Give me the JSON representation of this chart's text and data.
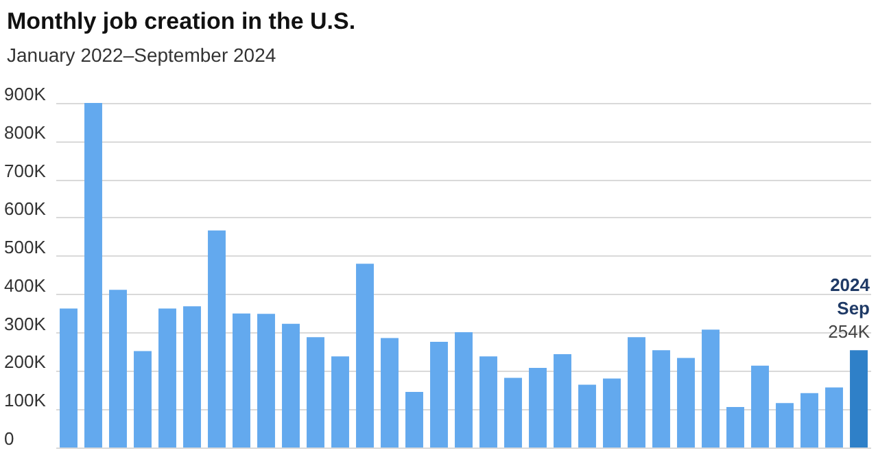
{
  "chart_data": {
    "type": "bar",
    "title": "Monthly job creation in the U.S.",
    "subtitle": "January 2022–September 2024",
    "categories": [
      null,
      null,
      null,
      null,
      null,
      null,
      null,
      null,
      null,
      null,
      null,
      null,
      null,
      null,
      null,
      null,
      null,
      null,
      null,
      null,
      null,
      null,
      null,
      null,
      null,
      null,
      null,
      null,
      null,
      null,
      null,
      null,
      null
    ],
    "values": [
      363,
      900,
      412,
      252,
      363,
      369,
      567,
      350,
      349,
      323,
      288,
      238,
      480,
      286,
      145,
      276,
      301,
      238,
      182,
      208,
      244,
      164,
      180,
      288,
      254,
      234,
      308,
      106,
      214,
      116,
      142,
      157,
      254
    ],
    "colors": [
      "#63a9ee",
      "#63a9ee",
      "#63a9ee",
      "#63a9ee",
      "#63a9ee",
      "#63a9ee",
      "#63a9ee",
      "#63a9ee",
      "#63a9ee",
      "#63a9ee",
      "#63a9ee",
      "#63a9ee",
      "#63a9ee",
      "#63a9ee",
      "#63a9ee",
      "#63a9ee",
      "#63a9ee",
      "#63a9ee",
      "#63a9ee",
      "#63a9ee",
      "#63a9ee",
      "#63a9ee",
      "#63a9ee",
      "#63a9ee",
      "#63a9ee",
      "#63a9ee",
      "#63a9ee",
      "#63a9ee",
      "#63a9ee",
      "#63a9ee",
      "#63a9ee",
      "#63a9ee",
      "#2f80c8"
    ],
    "value_labels": [
      null,
      null,
      null,
      null,
      null,
      null,
      null,
      null,
      null,
      null,
      null,
      null,
      null,
      null,
      null,
      null,
      null,
      null,
      null,
      null,
      null,
      null,
      null,
      null,
      null,
      null,
      null,
      null,
      null,
      null,
      null,
      null,
      "254K"
    ],
    "annotations": [
      {
        "text": "2024 Sep",
        "y": 254
      }
    ],
    "ylim": [
      0,
      900
    ],
    "yticks": [
      0,
      {
        "value": 100,
        "label": "100K"
      },
      {
        "value": 200,
        "label": "200K"
      },
      {
        "value": 300,
        "label": "300K"
      },
      {
        "value": 400,
        "label": "400K"
      },
      {
        "value": 500,
        "label": "500K"
      },
      {
        "value": 600,
        "label": "600K"
      },
      {
        "value": 700,
        "label": "700K"
      },
      {
        "value": 800,
        "label": "800K"
      },
      {
        "value": 900,
        "label": "900K"
      }
    ],
    "grid": "y"
  }
}
